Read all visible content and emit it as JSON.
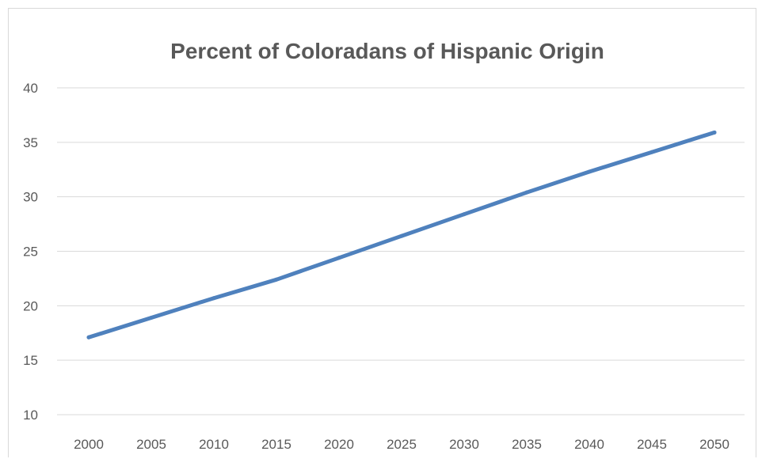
{
  "chart_data": {
    "type": "line",
    "title": "Percent of Coloradans of Hispanic Origin",
    "xlabel": "",
    "ylabel": "",
    "x": [
      2000,
      2005,
      2010,
      2015,
      2020,
      2025,
      2030,
      2035,
      2040,
      2045,
      2050
    ],
    "x_tick_labels": [
      "2000",
      "2005",
      "2010",
      "2015",
      "2020",
      "2025",
      "2030",
      "2035",
      "2040",
      "2045",
      "2050"
    ],
    "y_tick_labels": [
      "10",
      "15",
      "20",
      "25",
      "30",
      "35",
      "40"
    ],
    "y_ticks": [
      10,
      15,
      20,
      25,
      30,
      35,
      40
    ],
    "ylim": [
      10,
      40
    ],
    "grid": true,
    "legend": "none",
    "series": [
      {
        "color": "#4f81bd",
        "values": [
          17.1,
          18.9,
          20.7,
          22.4,
          24.4,
          26.4,
          28.4,
          30.4,
          32.3,
          34.1,
          35.9
        ]
      }
    ]
  }
}
